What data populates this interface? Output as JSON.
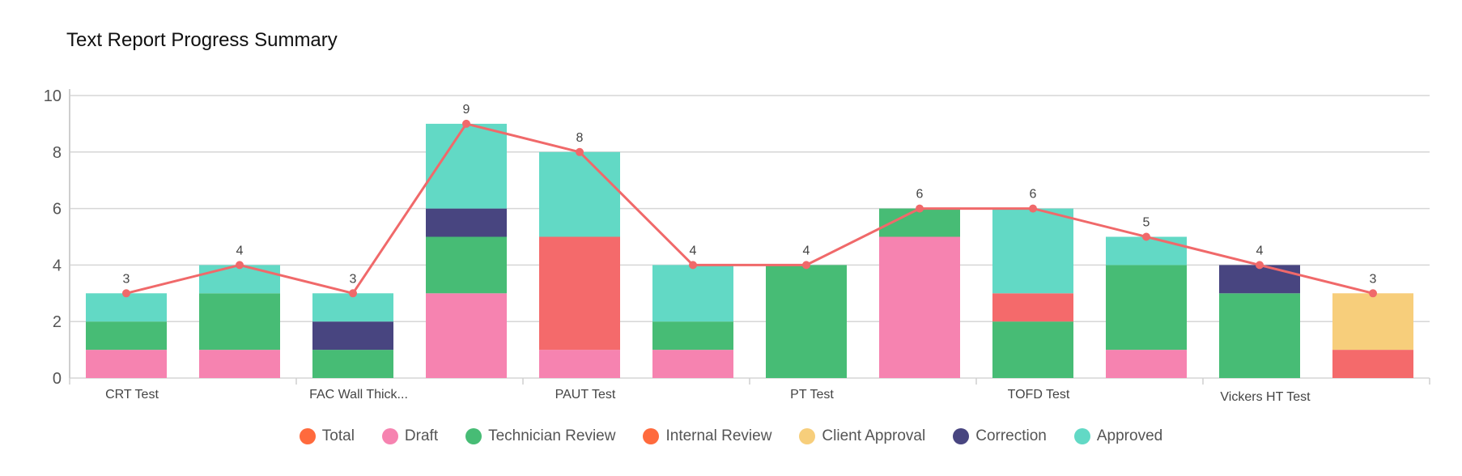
{
  "title": "Text Report Progress Summary",
  "chart_data": {
    "type": "bar",
    "stacked": true,
    "title": "Text Report Progress Summary",
    "ylim": [
      0,
      10
    ],
    "yticks": [
      0,
      2,
      4,
      6,
      8,
      10
    ],
    "categories": [
      "CRT Test",
      "",
      "FAC Wall Thick...",
      "",
      "PAUT Test",
      "",
      "PT Test",
      "",
      "TOFD Test",
      "",
      "Vickers HT Test",
      ""
    ],
    "series": [
      {
        "name": "Draft",
        "color": "#f683b0",
        "values": [
          1,
          1,
          0,
          3,
          1,
          1,
          0,
          5,
          0,
          1,
          0,
          0
        ]
      },
      {
        "name": "Technician Review",
        "color": "#47bc75",
        "values": [
          1,
          2,
          1,
          2,
          0,
          1,
          4,
          1,
          2,
          3,
          3,
          0
        ]
      },
      {
        "name": "Internal Review",
        "color": "#f46a6b",
        "values": [
          0,
          0,
          0,
          0,
          4,
          0,
          0,
          0,
          1,
          0,
          0,
          1
        ]
      },
      {
        "name": "Client Approval",
        "color": "#f7ce7b",
        "values": [
          0,
          0,
          0,
          0,
          0,
          0,
          0,
          0,
          0,
          0,
          0,
          2
        ]
      },
      {
        "name": "Correction",
        "color": "#484580",
        "values": [
          0,
          0,
          1,
          1,
          0,
          0,
          0,
          0,
          0,
          0,
          1,
          0
        ]
      },
      {
        "name": "Approved",
        "color": "#62d9c5",
        "values": [
          1,
          1,
          1,
          3,
          3,
          2,
          0,
          0,
          3,
          1,
          0,
          0
        ]
      }
    ],
    "line": {
      "name": "Total",
      "color": "#f0696a",
      "values": [
        3,
        4,
        3,
        9,
        8,
        4,
        4,
        6,
        6,
        5,
        4,
        3
      ]
    },
    "legend": [
      {
        "name": "Total",
        "color": "#ff6a3d"
      },
      {
        "name": "Draft",
        "color": "#f683b0"
      },
      {
        "name": "Technician Review",
        "color": "#47bc75"
      },
      {
        "name": "Internal Review",
        "color": "#ff6a3d"
      },
      {
        "name": "Client Approval",
        "color": "#f7ce7b"
      },
      {
        "name": "Correction",
        "color": "#484580"
      },
      {
        "name": "Approved",
        "color": "#62d9c5"
      }
    ],
    "legend_position": "bottom"
  }
}
